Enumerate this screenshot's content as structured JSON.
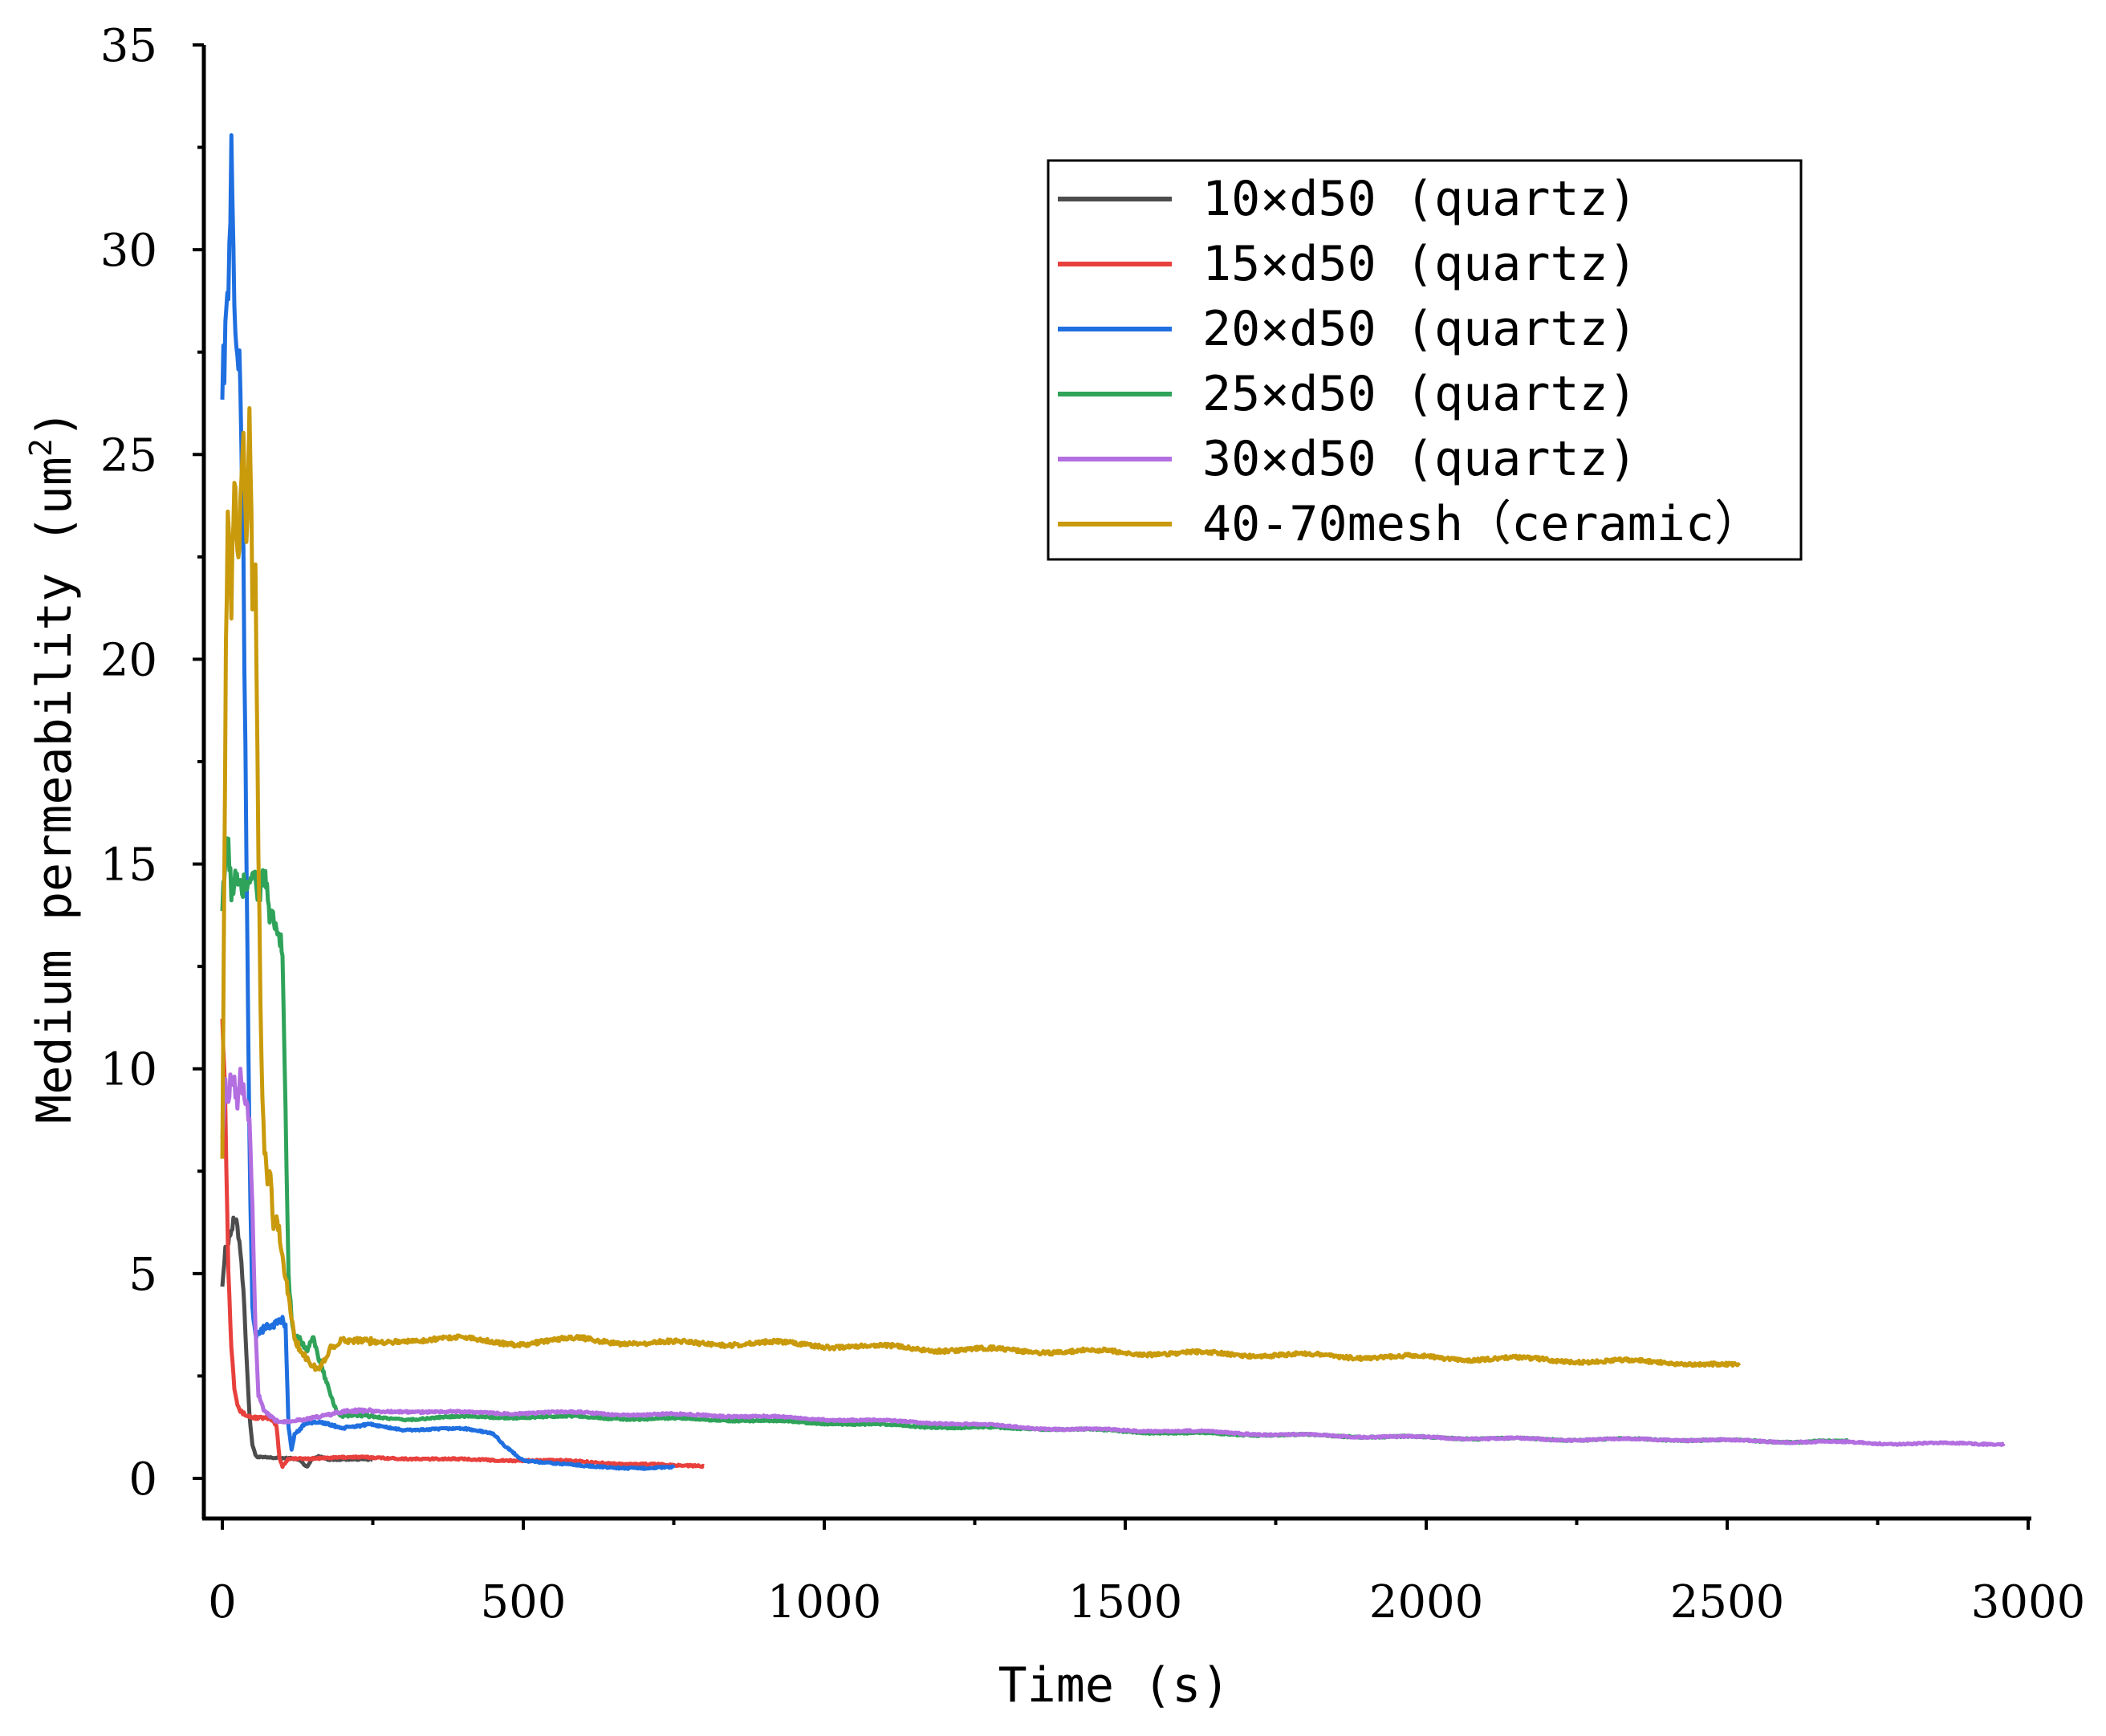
{
  "chart_data": {
    "type": "line",
    "title": "",
    "xlabel": "Time (s)",
    "ylabel_prefix": "Medium permeability (um",
    "ylabel_sup": "2",
    "ylabel_suffix": ")",
    "xlim": [
      -10,
      3000
    ],
    "ylim": [
      -1,
      35
    ],
    "xticks": [
      0,
      500,
      1000,
      1500,
      2000,
      2500,
      3000
    ],
    "yticks": [
      0,
      5,
      10,
      15,
      20,
      25,
      30,
      35
    ],
    "grid": false,
    "legend_position": "top-right",
    "series": [
      {
        "name": "10×d50 (quartz)",
        "color": "#4d4d4d",
        "x": [
          0,
          5,
          10,
          15,
          20,
          25,
          30,
          35,
          40,
          45,
          50,
          55,
          60,
          70,
          80,
          100,
          120,
          130,
          140,
          150,
          160,
          180,
          200,
          250
        ],
        "y": [
          4.8,
          5.5,
          5.8,
          6.0,
          6.2,
          6.0,
          5.5,
          4.5,
          3.0,
          1.5,
          0.8,
          0.55,
          0.5,
          0.5,
          0.5,
          0.5,
          0.5,
          0.45,
          0.3,
          0.5,
          0.55,
          0.45,
          0.45,
          0.45
        ]
      },
      {
        "name": "15×d50 (quartz)",
        "color": "#e8403d",
        "x": [
          0,
          5,
          10,
          15,
          20,
          25,
          30,
          40,
          50,
          60,
          70,
          80,
          90,
          95,
          100,
          110,
          130,
          150,
          200,
          300,
          400,
          500,
          600,
          700,
          750,
          800
        ],
        "y": [
          11.5,
          9.0,
          5.0,
          3.2,
          2.2,
          1.8,
          1.6,
          1.5,
          1.45,
          1.45,
          1.45,
          1.45,
          1.3,
          0.5,
          0.3,
          0.5,
          0.5,
          0.5,
          0.5,
          0.5,
          0.45,
          0.45,
          0.4,
          0.35,
          0.3,
          0.3
        ]
      },
      {
        "name": "20×d50 (quartz)",
        "color": "#1f6fe0",
        "x": [
          0,
          5,
          10,
          15,
          20,
          25,
          30,
          35,
          40,
          45,
          50,
          55,
          60,
          70,
          80,
          90,
          100,
          105,
          110,
          115,
          120,
          140,
          160,
          200,
          250,
          300,
          350,
          400,
          450,
          470,
          500,
          550,
          600,
          650,
          700,
          750
        ],
        "y": [
          27.0,
          27.5,
          29.0,
          32.0,
          28.0,
          27.0,
          26.0,
          22.0,
          15.0,
          8.0,
          4.0,
          3.4,
          3.5,
          3.6,
          3.7,
          3.8,
          3.9,
          3.8,
          1.3,
          0.7,
          1.1,
          1.4,
          1.4,
          1.2,
          1.3,
          1.2,
          1.2,
          1.2,
          1.1,
          0.8,
          0.45,
          0.35,
          0.3,
          0.28,
          0.25,
          0.25
        ]
      },
      {
        "name": "25×d50 (quartz)",
        "color": "#2fa35a",
        "x": [
          0,
          5,
          10,
          15,
          20,
          30,
          40,
          50,
          60,
          70,
          80,
          90,
          100,
          105,
          110,
          115,
          120,
          130,
          140,
          150,
          160,
          170,
          180,
          190,
          200,
          250,
          300,
          400,
          500,
          600,
          700,
          800,
          900,
          1000,
          1200,
          1400,
          1600,
          1800,
          2000,
          2200,
          2400,
          2600,
          2700
        ],
        "y": [
          14.2,
          15.0,
          15.3,
          14.0,
          14.5,
          14.0,
          14.2,
          14.5,
          14.0,
          14.5,
          13.5,
          13.5,
          13.0,
          9.0,
          5.0,
          4.0,
          3.5,
          3.5,
          3.2,
          3.5,
          3.0,
          2.5,
          2.0,
          1.6,
          1.5,
          1.5,
          1.45,
          1.5,
          1.5,
          1.5,
          1.45,
          1.45,
          1.4,
          1.35,
          1.25,
          1.2,
          1.1,
          1.05,
          1.0,
          0.95,
          0.95,
          0.9,
          0.9
        ]
      },
      {
        "name": "30×d50 (quartz)",
        "color": "#b36ee0",
        "x": [
          0,
          5,
          10,
          15,
          20,
          25,
          30,
          35,
          40,
          45,
          50,
          55,
          60,
          70,
          80,
          90,
          100,
          120,
          150,
          200,
          300,
          400,
          500,
          600,
          700,
          800,
          1000,
          1200,
          1400,
          1600,
          1800,
          2000,
          2200,
          2400,
          2600,
          2800,
          2960
        ],
        "y": [
          8.5,
          9.5,
          9.2,
          9.8,
          9.5,
          9.0,
          9.6,
          9.2,
          9.0,
          8.5,
          6.5,
          3.5,
          2.0,
          1.6,
          1.5,
          1.4,
          1.4,
          1.45,
          1.5,
          1.6,
          1.65,
          1.6,
          1.6,
          1.6,
          1.55,
          1.55,
          1.45,
          1.35,
          1.2,
          1.15,
          1.05,
          1.0,
          0.95,
          0.95,
          0.9,
          0.85,
          0.85
        ]
      },
      {
        "name": "40-70mesh（ceramic）",
        "color": "#c99a0c",
        "x": [
          0,
          3,
          6,
          9,
          12,
          15,
          20,
          25,
          30,
          35,
          40,
          45,
          50,
          55,
          60,
          65,
          70,
          75,
          80,
          85,
          90,
          100,
          110,
          115,
          120,
          130,
          140,
          150,
          160,
          170,
          180,
          200,
          250,
          300,
          400,
          500,
          600,
          700,
          800,
          900,
          1000,
          1200,
          1400,
          1600,
          1800,
          2000,
          2200,
          2300,
          2400,
          2500,
          2520
        ],
        "y": [
          8.0,
          14.0,
          20.0,
          23.0,
          22.0,
          21.0,
          24.0,
          22.0,
          23.0,
          25.0,
          22.0,
          26.0,
          21.0,
          22.0,
          15.0,
          10.0,
          8.0,
          7.0,
          7.5,
          6.0,
          6.5,
          5.5,
          4.5,
          4.0,
          3.5,
          3.2,
          3.0,
          2.8,
          2.7,
          2.9,
          3.2,
          3.3,
          3.3,
          3.4,
          3.4,
          3.3,
          3.4,
          3.3,
          3.3,
          3.3,
          3.25,
          3.15,
          3.1,
          3.05,
          3.0,
          2.95,
          2.9,
          2.85,
          2.85,
          2.75,
          2.75
        ]
      }
    ]
  }
}
